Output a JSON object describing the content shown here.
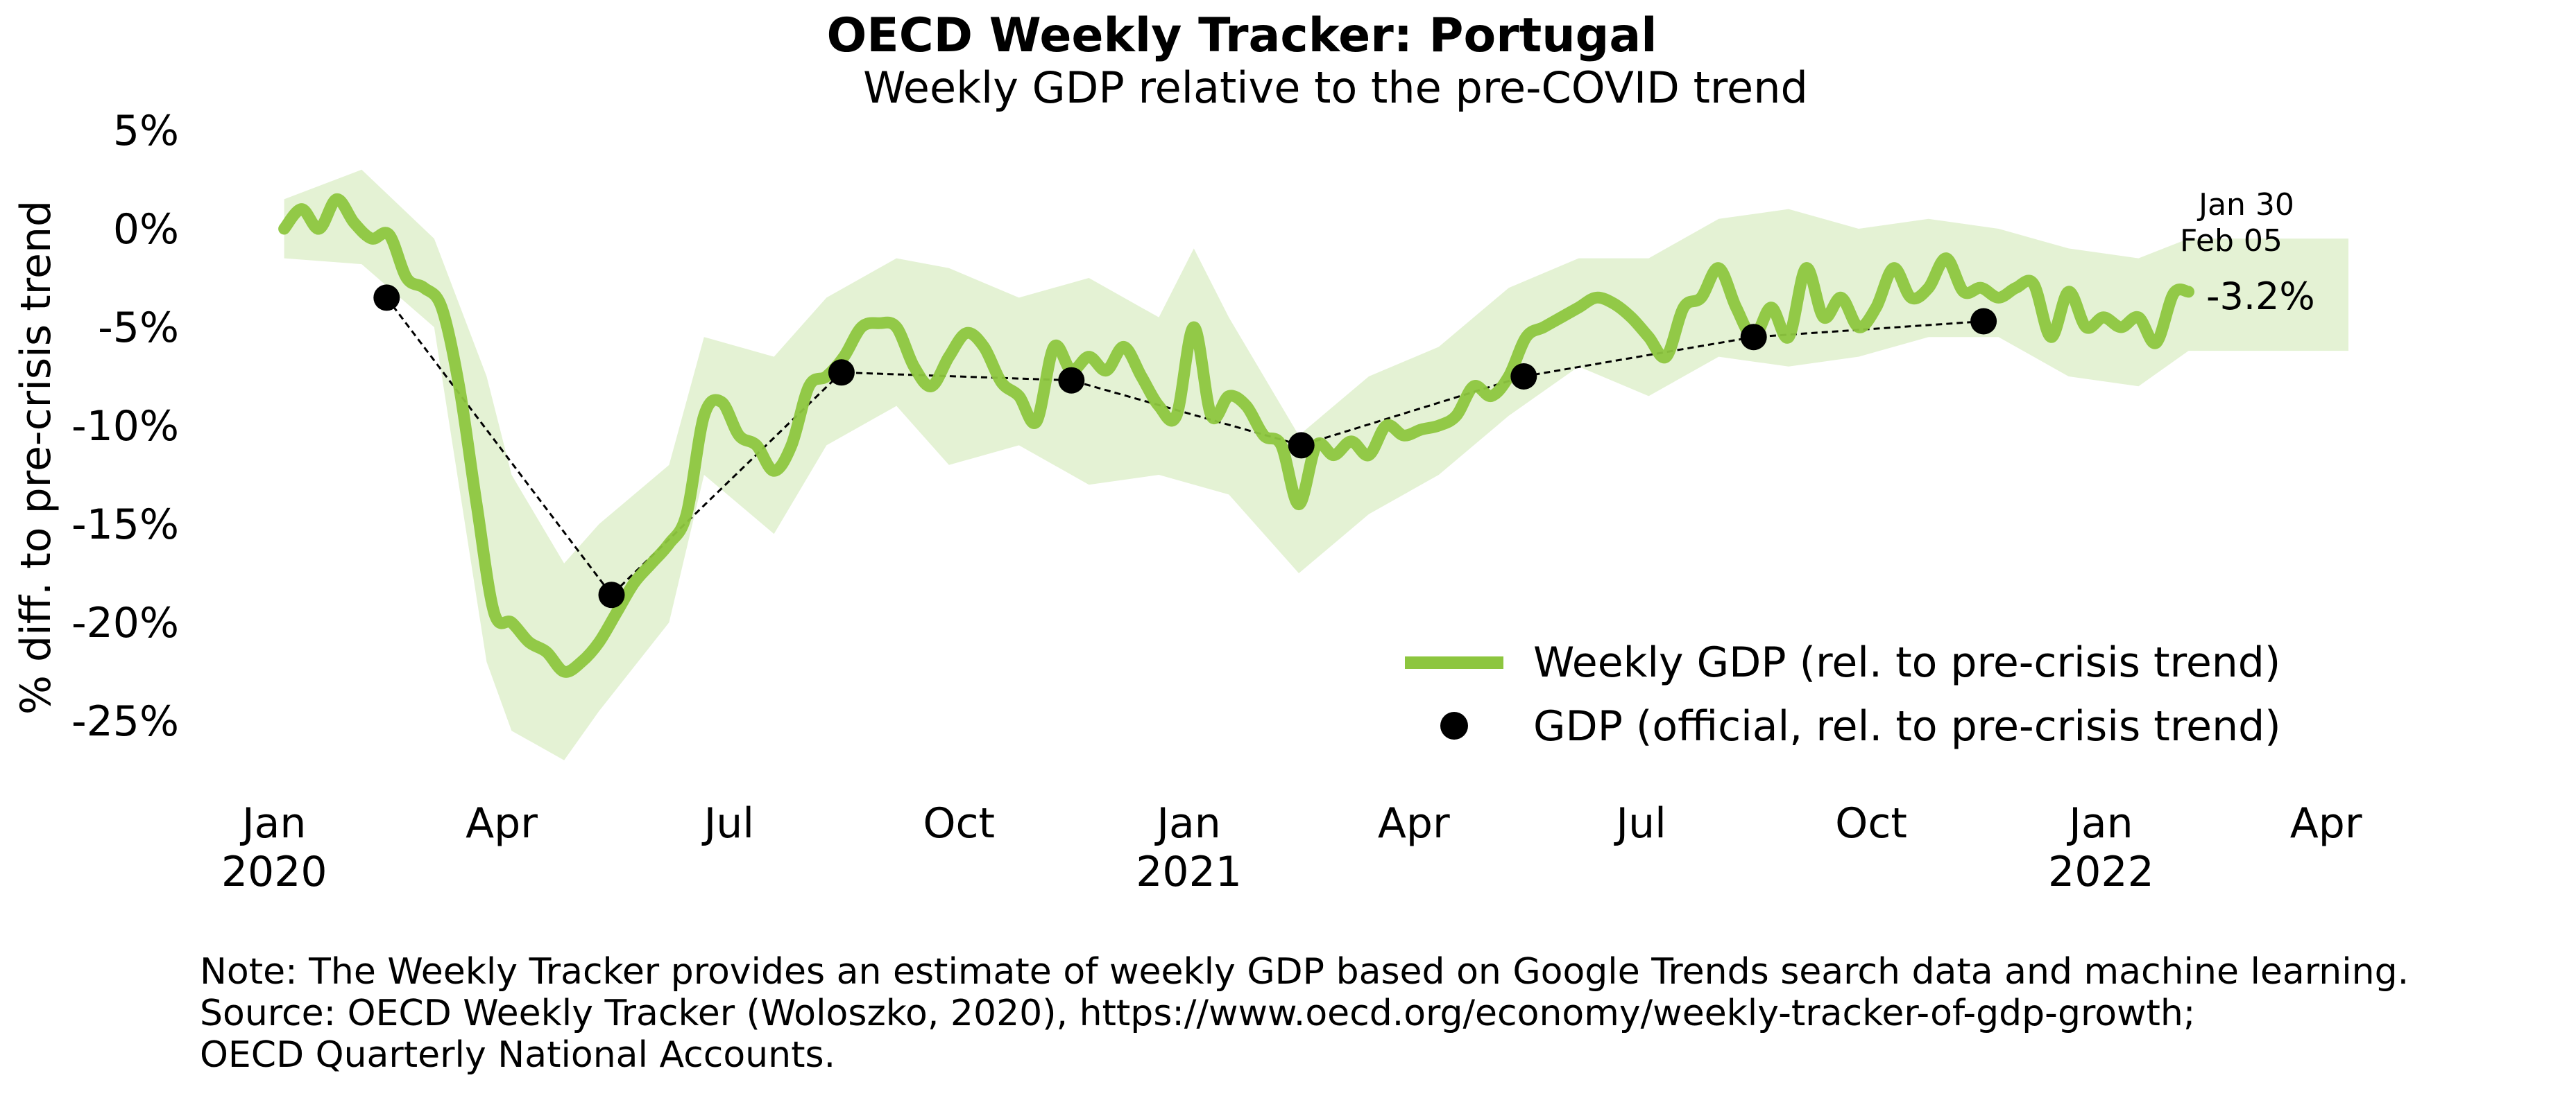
{
  "chart_data": {
    "type": "line",
    "title": "OECD Weekly Tracker: Portugal",
    "subtitle": "Weekly GDP relative to the pre-COVID trend",
    "ylabel": "% diff. to pre-crisis trend",
    "xlabel": "",
    "ylim": [
      -28,
      5
    ],
    "xlim": [
      "2019-12-25",
      "2022-04-10"
    ],
    "grid": false,
    "legend_placement": "lower-right",
    "y_ticks": [
      {
        "value": 5,
        "label": "5%"
      },
      {
        "value": 0,
        "label": "0%"
      },
      {
        "value": -5,
        "label": "-5%"
      },
      {
        "value": -10,
        "label": "-10%"
      },
      {
        "value": -15,
        "label": "-15%"
      },
      {
        "value": -20,
        "label": "-20%"
      },
      {
        "value": -25,
        "label": "-25%"
      }
    ],
    "x_ticks": [
      {
        "date": "2020-01-01",
        "label": "Jan",
        "year": "2020"
      },
      {
        "date": "2020-04-01",
        "label": "Apr",
        "year": ""
      },
      {
        "date": "2020-07-01",
        "label": "Jul",
        "year": ""
      },
      {
        "date": "2020-10-01",
        "label": "Oct",
        "year": ""
      },
      {
        "date": "2021-01-01",
        "label": "Jan",
        "year": "2021"
      },
      {
        "date": "2021-04-01",
        "label": "Apr",
        "year": ""
      },
      {
        "date": "2021-07-01",
        "label": "Jul",
        "year": ""
      },
      {
        "date": "2021-10-01",
        "label": "Oct",
        "year": ""
      },
      {
        "date": "2022-01-01",
        "label": "Jan",
        "year": "2022"
      },
      {
        "date": "2022-04-01",
        "label": "Apr",
        "year": ""
      }
    ],
    "series": [
      {
        "name": "Weekly GDP (rel. to pre-crisis trend)",
        "color": "#8dc63f",
        "style": "line",
        "points": [
          [
            "2020-01-05",
            0.0
          ],
          [
            "2020-01-12",
            1.0
          ],
          [
            "2020-01-19",
            0.0
          ],
          [
            "2020-01-26",
            1.5
          ],
          [
            "2020-02-02",
            0.3
          ],
          [
            "2020-02-09",
            -0.5
          ],
          [
            "2020-02-16",
            -0.3
          ],
          [
            "2020-02-23",
            -2.5
          ],
          [
            "2020-03-01",
            -3.0
          ],
          [
            "2020-03-08",
            -4.0
          ],
          [
            "2020-03-15",
            -8.0
          ],
          [
            "2020-03-22",
            -14.0
          ],
          [
            "2020-03-29",
            -19.5
          ],
          [
            "2020-04-05",
            -20.0
          ],
          [
            "2020-04-12",
            -21.0
          ],
          [
            "2020-04-19",
            -21.5
          ],
          [
            "2020-04-26",
            -22.5
          ],
          [
            "2020-05-03",
            -22.0
          ],
          [
            "2020-05-10",
            -21.0
          ],
          [
            "2020-05-17",
            -19.5
          ],
          [
            "2020-05-24",
            -18.0
          ],
          [
            "2020-05-31",
            -17.0
          ],
          [
            "2020-06-07",
            -16.0
          ],
          [
            "2020-06-14",
            -14.5
          ],
          [
            "2020-06-21",
            -9.5
          ],
          [
            "2020-06-28",
            -8.8
          ],
          [
            "2020-07-05",
            -10.5
          ],
          [
            "2020-07-12",
            -11.0
          ],
          [
            "2020-07-19",
            -12.3
          ],
          [
            "2020-07-26",
            -11.0
          ],
          [
            "2020-08-02",
            -8.0
          ],
          [
            "2020-08-09",
            -7.5
          ],
          [
            "2020-08-16",
            -6.5
          ],
          [
            "2020-08-23",
            -5.0
          ],
          [
            "2020-08-30",
            -4.8
          ],
          [
            "2020-09-06",
            -5.0
          ],
          [
            "2020-09-13",
            -7.0
          ],
          [
            "2020-09-20",
            -8.0
          ],
          [
            "2020-09-27",
            -6.5
          ],
          [
            "2020-10-04",
            -5.3
          ],
          [
            "2020-10-11",
            -6.0
          ],
          [
            "2020-10-18",
            -7.8
          ],
          [
            "2020-10-25",
            -8.5
          ],
          [
            "2020-11-01",
            -9.8
          ],
          [
            "2020-11-08",
            -6.0
          ],
          [
            "2020-11-15",
            -7.2
          ],
          [
            "2020-11-22",
            -6.5
          ],
          [
            "2020-11-29",
            -7.2
          ],
          [
            "2020-12-06",
            -6.0
          ],
          [
            "2020-12-13",
            -7.5
          ],
          [
            "2020-12-20",
            -9.0
          ],
          [
            "2020-12-27",
            -9.5
          ],
          [
            "2021-01-03",
            -5.0
          ],
          [
            "2021-01-10",
            -9.5
          ],
          [
            "2021-01-17",
            -8.5
          ],
          [
            "2021-01-24",
            -9.0
          ],
          [
            "2021-01-31",
            -10.5
          ],
          [
            "2021-02-07",
            -11.0
          ],
          [
            "2021-02-14",
            -14.0
          ],
          [
            "2021-02-21",
            -11.0
          ],
          [
            "2021-02-28",
            -11.5
          ],
          [
            "2021-03-07",
            -10.8
          ],
          [
            "2021-03-14",
            -11.5
          ],
          [
            "2021-03-21",
            -10.0
          ],
          [
            "2021-03-28",
            -10.5
          ],
          [
            "2021-04-04",
            -10.2
          ],
          [
            "2021-04-11",
            -10.0
          ],
          [
            "2021-04-18",
            -9.5
          ],
          [
            "2021-04-25",
            -8.0
          ],
          [
            "2021-05-02",
            -8.5
          ],
          [
            "2021-05-09",
            -7.5
          ],
          [
            "2021-05-16",
            -5.5
          ],
          [
            "2021-05-23",
            -5.0
          ],
          [
            "2021-05-30",
            -4.5
          ],
          [
            "2021-06-06",
            -4.0
          ],
          [
            "2021-06-13",
            -3.5
          ],
          [
            "2021-06-20",
            -3.8
          ],
          [
            "2021-06-27",
            -4.5
          ],
          [
            "2021-07-04",
            -5.5
          ],
          [
            "2021-07-11",
            -6.5
          ],
          [
            "2021-07-18",
            -4.0
          ],
          [
            "2021-07-25",
            -3.5
          ],
          [
            "2021-08-01",
            -2.0
          ],
          [
            "2021-08-08",
            -4.0
          ],
          [
            "2021-08-15",
            -5.5
          ],
          [
            "2021-08-22",
            -4.0
          ],
          [
            "2021-08-29",
            -5.5
          ],
          [
            "2021-09-05",
            -2.0
          ],
          [
            "2021-09-12",
            -4.5
          ],
          [
            "2021-09-19",
            -3.5
          ],
          [
            "2021-09-26",
            -5.0
          ],
          [
            "2021-10-03",
            -4.0
          ],
          [
            "2021-10-10",
            -2.0
          ],
          [
            "2021-10-17",
            -3.5
          ],
          [
            "2021-10-24",
            -3.0
          ],
          [
            "2021-10-31",
            -1.5
          ],
          [
            "2021-11-07",
            -3.2
          ],
          [
            "2021-11-14",
            -3.0
          ],
          [
            "2021-11-21",
            -3.5
          ],
          [
            "2021-11-28",
            -3.0
          ],
          [
            "2021-12-05",
            -2.8
          ],
          [
            "2021-12-12",
            -5.5
          ],
          [
            "2021-12-19",
            -3.2
          ],
          [
            "2021-12-26",
            -5.0
          ],
          [
            "2022-01-02",
            -4.5
          ],
          [
            "2022-01-09",
            -5.0
          ],
          [
            "2022-01-16",
            -4.5
          ],
          [
            "2022-01-23",
            -5.8
          ],
          [
            "2022-01-30",
            -3.3
          ],
          [
            "2022-02-05",
            -3.2
          ]
        ]
      },
      {
        "name": "GDP (official, rel. to pre-crisis trend)",
        "color": "#000000",
        "style": "markers",
        "points": [
          [
            "2020-02-15",
            -3.5
          ],
          [
            "2020-05-15",
            -18.6
          ],
          [
            "2020-08-15",
            -7.3
          ],
          [
            "2020-11-15",
            -7.7
          ],
          [
            "2021-02-15",
            -11.0
          ],
          [
            "2021-05-15",
            -7.5
          ],
          [
            "2021-08-15",
            -5.5
          ],
          [
            "2021-11-15",
            -4.7
          ]
        ]
      }
    ],
    "band": {
      "color": "#e4f2d4",
      "lower": [
        [
          "2020-01-05",
          -1.5
        ],
        [
          "2020-02-05",
          -1.8
        ],
        [
          "2020-03-05",
          -5.0
        ],
        [
          "2020-03-26",
          -22.0
        ],
        [
          "2020-04-05",
          -25.5
        ],
        [
          "2020-04-26",
          -27.0
        ],
        [
          "2020-05-10",
          -24.5
        ],
        [
          "2020-06-07",
          -20.0
        ],
        [
          "2020-06-21",
          -12.5
        ],
        [
          "2020-07-19",
          -15.5
        ],
        [
          "2020-08-09",
          -11.0
        ],
        [
          "2020-09-06",
          -9.0
        ],
        [
          "2020-09-27",
          -12.0
        ],
        [
          "2020-10-25",
          -11.0
        ],
        [
          "2020-11-22",
          -13.0
        ],
        [
          "2020-12-20",
          -12.5
        ],
        [
          "2021-01-17",
          -13.5
        ],
        [
          "2021-02-14",
          -17.5
        ],
        [
          "2021-03-14",
          -14.5
        ],
        [
          "2021-04-11",
          -12.5
        ],
        [
          "2021-05-09",
          -9.5
        ],
        [
          "2021-06-06",
          -7.0
        ],
        [
          "2021-07-04",
          -8.5
        ],
        [
          "2021-08-01",
          -6.5
        ],
        [
          "2021-08-29",
          -7.0
        ],
        [
          "2021-09-26",
          -6.5
        ],
        [
          "2021-10-24",
          -5.5
        ],
        [
          "2021-11-21",
          -5.5
        ],
        [
          "2021-12-19",
          -7.5
        ],
        [
          "2022-01-16",
          -8.0
        ],
        [
          "2022-02-05",
          -6.2
        ],
        [
          "2022-04-10",
          -6.2
        ]
      ],
      "upper": [
        [
          "2022-04-10",
          -0.5
        ],
        [
          "2022-02-05",
          -0.5
        ],
        [
          "2022-01-16",
          -1.5
        ],
        [
          "2021-12-19",
          -1.0
        ],
        [
          "2021-11-21",
          0.0
        ],
        [
          "2021-10-24",
          0.5
        ],
        [
          "2021-09-26",
          0.0
        ],
        [
          "2021-08-29",
          1.0
        ],
        [
          "2021-08-01",
          0.5
        ],
        [
          "2021-07-04",
          -1.5
        ],
        [
          "2021-06-06",
          -1.5
        ],
        [
          "2021-05-09",
          -3.0
        ],
        [
          "2021-04-11",
          -6.0
        ],
        [
          "2021-03-14",
          -7.5
        ],
        [
          "2021-02-14",
          -10.5
        ],
        [
          "2021-01-17",
          -4.5
        ],
        [
          "2021-01-03",
          -1.0
        ],
        [
          "2020-12-20",
          -4.5
        ],
        [
          "2020-11-22",
          -2.5
        ],
        [
          "2020-10-25",
          -3.5
        ],
        [
          "2020-09-27",
          -2.0
        ],
        [
          "2020-09-06",
          -1.5
        ],
        [
          "2020-08-09",
          -3.5
        ],
        [
          "2020-07-19",
          -6.5
        ],
        [
          "2020-06-21",
          -5.5
        ],
        [
          "2020-06-07",
          -12.0
        ],
        [
          "2020-05-10",
          -15.0
        ],
        [
          "2020-04-26",
          -17.0
        ],
        [
          "2020-04-05",
          -12.5
        ],
        [
          "2020-03-26",
          -7.5
        ],
        [
          "2020-03-05",
          -0.5
        ],
        [
          "2020-02-05",
          3.0
        ],
        [
          "2020-01-05",
          1.5
        ]
      ]
    },
    "annotations": {
      "date_label_1": "Jan 30",
      "date_label_2": "Feb 05",
      "last_value": "-3.2%"
    },
    "legend": [
      {
        "label": "Weekly GDP (rel. to pre-crisis trend)",
        "color": "#8dc63f",
        "marker": "line"
      },
      {
        "label": "GDP (official, rel. to pre-crisis trend)",
        "color": "#000000",
        "marker": "dot"
      }
    ]
  },
  "note": {
    "line1": "Note: The Weekly Tracker provides an estimate of weekly GDP based on Google Trends search data and machine learning.",
    "line2": "Source: OECD Weekly Tracker (Woloszko, 2020), https://www.oecd.org/economy/weekly-tracker-of-gdp-growth;",
    "line3": "OECD Quarterly National Accounts."
  }
}
